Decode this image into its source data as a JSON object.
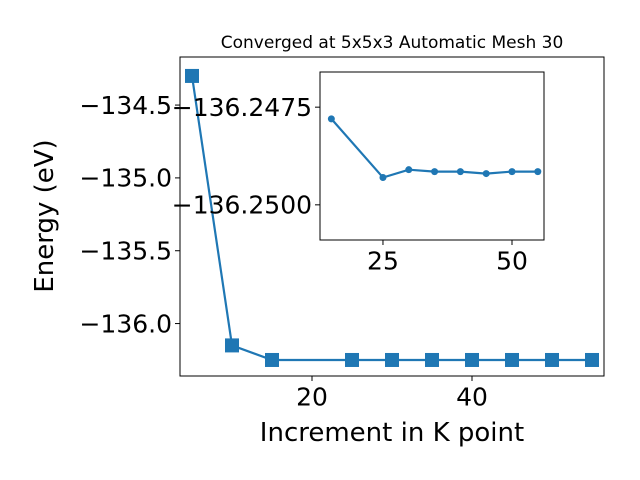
{
  "chart_data": [
    {
      "type": "line",
      "title": "Converged at 5x5x3 Automatic Mesh 30",
      "xlabel": "Increment in K point",
      "ylabel": "Energy (eV)",
      "xlim": [
        3.5,
        56.5
      ],
      "ylim": [
        -136.36,
        -134.17
      ],
      "xticks": [
        20,
        40
      ],
      "xtick_labels": [
        "20",
        "40"
      ],
      "yticks": [
        -134.5,
        -135.0,
        -135.5,
        -136.0
      ],
      "ytick_labels": [
        "−134.5",
        "−135.0",
        "−135.5",
        "−136.0"
      ],
      "marker": "square",
      "grid": false,
      "color": "#1f77b4",
      "x": [
        5,
        10,
        15,
        25,
        30,
        35,
        40,
        45,
        50,
        55
      ],
      "y": [
        -134.3,
        -136.15,
        -136.25,
        -136.25,
        -136.25,
        -136.25,
        -136.25,
        -136.25,
        -136.25,
        -136.25
      ]
    },
    {
      "type": "line",
      "title": "",
      "xlabel": "",
      "ylabel": "",
      "inset": true,
      "xlim": [
        12.8,
        56.2
      ],
      "ylim": [
        -136.2509,
        -136.2466
      ],
      "xticks": [
        25,
        50
      ],
      "xtick_labels": [
        "25",
        "50"
      ],
      "yticks": [
        -136.25,
        -136.2475
      ],
      "ytick_labels": [
        "−136.2500",
        "−136.2475"
      ],
      "marker": "circle",
      "grid": false,
      "color": "#1f77b4",
      "x": [
        15,
        25,
        30,
        35,
        40,
        45,
        50,
        55
      ],
      "y": [
        -136.2478,
        -136.2493,
        -136.2491,
        -136.24915,
        -136.24915,
        -136.2492,
        -136.24915,
        -136.24915
      ]
    }
  ]
}
